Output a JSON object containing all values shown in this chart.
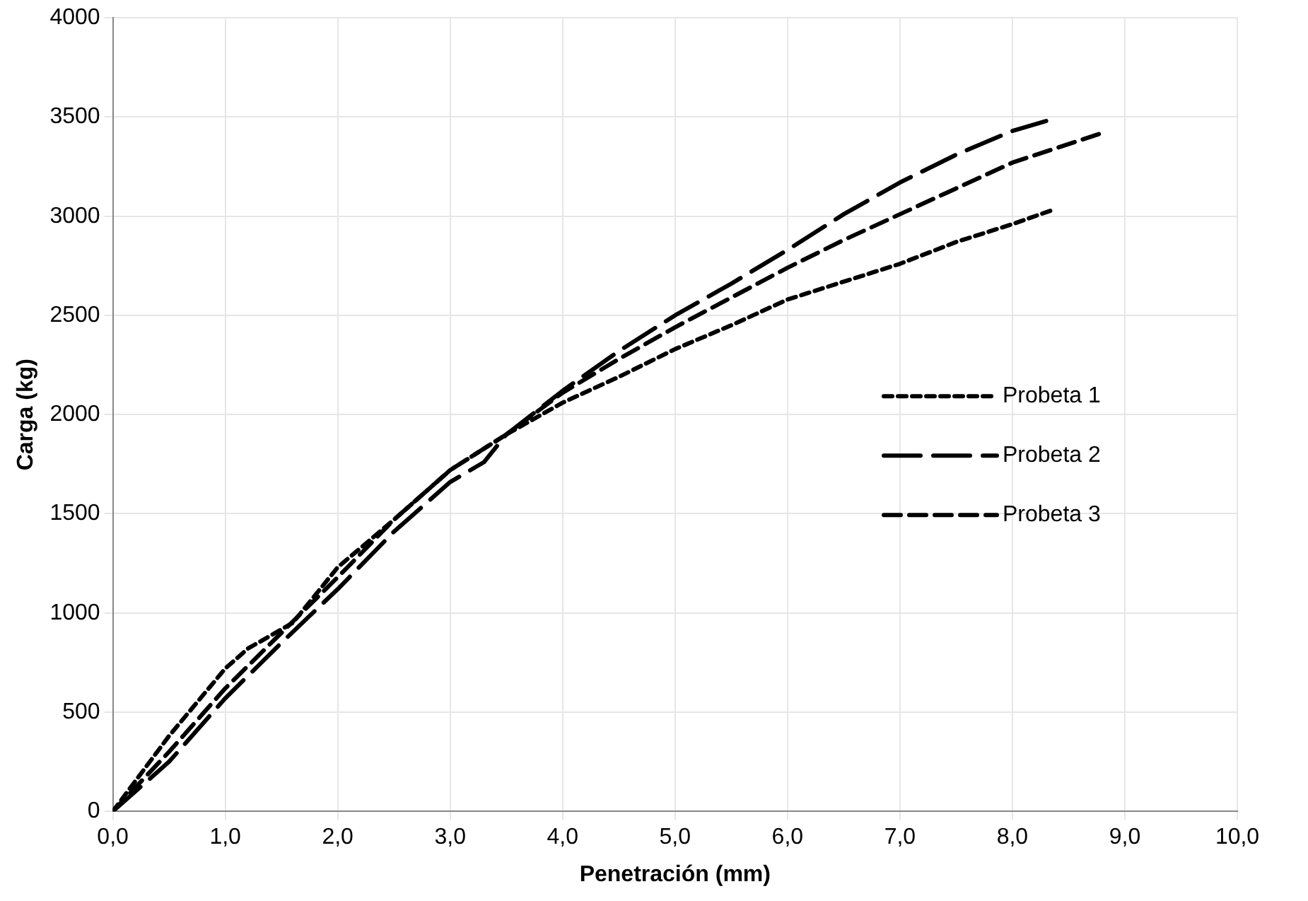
{
  "chart_data": {
    "type": "line",
    "xlabel": "Penetración (mm)",
    "ylabel": "Carga (kg)",
    "xlim": [
      0,
      10
    ],
    "xticks": [
      {
        "value": 0,
        "label": "0,0"
      },
      {
        "value": 1,
        "label": "1,0"
      },
      {
        "value": 2,
        "label": "2,0"
      },
      {
        "value": 3,
        "label": "3,0"
      },
      {
        "value": 4,
        "label": "4,0"
      },
      {
        "value": 5,
        "label": "5,0"
      },
      {
        "value": 6,
        "label": "6,0"
      },
      {
        "value": 7,
        "label": "7,0"
      },
      {
        "value": 8,
        "label": "8,0"
      },
      {
        "value": 9,
        "label": "9,0"
      },
      {
        "value": 10,
        "label": "10,0"
      }
    ],
    "ylim": [
      0,
      4000
    ],
    "yticks": [
      0,
      500,
      1000,
      1500,
      2000,
      2500,
      3000,
      3500,
      4000
    ],
    "grid": true,
    "legend": "right",
    "marker": "none",
    "series": [
      {
        "name": "Probeta 1",
        "color": "#000000",
        "line_style": "dotted",
        "x": [
          0,
          0.5,
          1,
          1.2,
          1.6,
          2,
          2.5,
          3,
          3.5,
          4,
          4.5,
          5,
          5.5,
          6,
          7,
          7.5,
          8,
          8.35
        ],
        "values": [
          0,
          380,
          720,
          820,
          950,
          1230,
          1470,
          1720,
          1900,
          2060,
          2190,
          2330,
          2450,
          2580,
          2760,
          2870,
          2960,
          3030
        ]
      },
      {
        "name": "Probeta 2",
        "color": "#000000",
        "line_style": "dashed",
        "x": [
          0,
          0.5,
          1,
          1.5,
          2,
          2.5,
          3,
          3.3,
          3.5,
          4,
          4.5,
          5,
          5.5,
          6,
          6.5,
          7,
          7.5,
          8,
          8.3
        ],
        "values": [
          0,
          250,
          570,
          850,
          1120,
          1410,
          1660,
          1760,
          1900,
          2120,
          2320,
          2500,
          2660,
          2830,
          3010,
          3170,
          3310,
          3430,
          3480
        ]
      },
      {
        "name": "Probeta 3",
        "color": "#000000",
        "line_style": "dashed",
        "x": [
          0,
          0.5,
          1,
          1.5,
          2,
          2.5,
          3,
          3.5,
          4,
          4.5,
          5,
          5.5,
          6,
          6.5,
          7,
          7.5,
          8,
          8.8
        ],
        "values": [
          0,
          300,
          620,
          900,
          1180,
          1470,
          1720,
          1900,
          2110,
          2280,
          2440,
          2590,
          2740,
          2880,
          3010,
          3140,
          3270,
          3420
        ]
      }
    ]
  }
}
